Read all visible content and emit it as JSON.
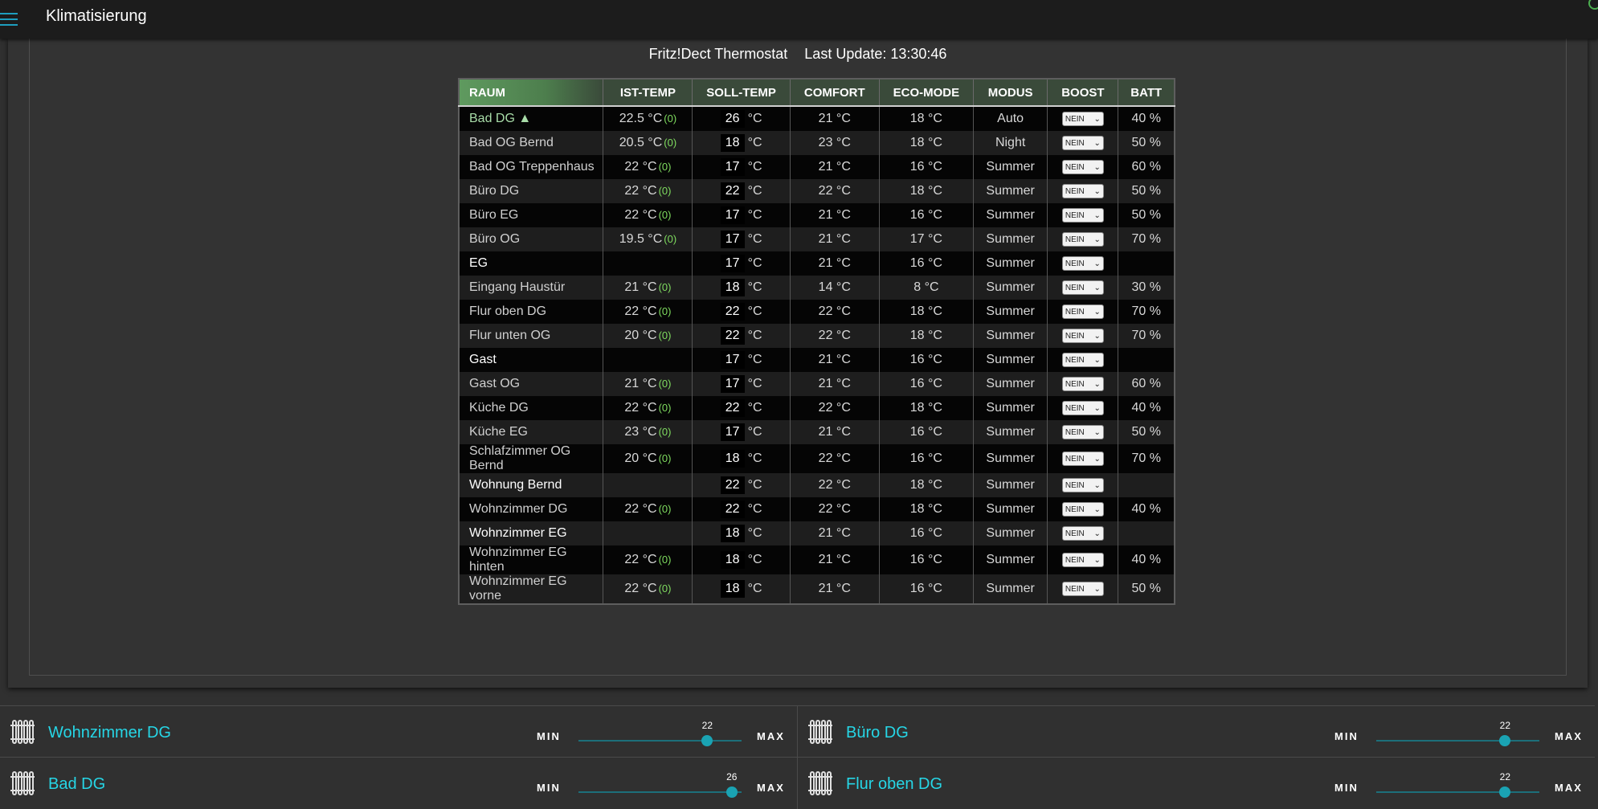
{
  "app": {
    "title": "Klimatisierung"
  },
  "panel": {
    "device": "Fritz!Dect Thermostat",
    "last_update": "Last Update: 13:30:46"
  },
  "table": {
    "columns": [
      "RAUM",
      "IST-TEMP",
      "SOLL-TEMP",
      "COMFORT",
      "ECO-MODE",
      "MODUS",
      "BOOST",
      "BATT"
    ],
    "rows": [
      {
        "raum": "Bad DG ▲",
        "ist": "22.5 °C",
        "ist_sub": "(0)",
        "soll": "26",
        "comfort": "21 °C",
        "eco": "18 °C",
        "modus": "Auto",
        "boost": "NEIN",
        "batt": "40 %"
      },
      {
        "raum": "Bad OG Bernd",
        "ist": "20.5 °C",
        "ist_sub": "(0)",
        "soll": "18",
        "comfort": "23 °C",
        "eco": "18 °C",
        "modus": "Night",
        "boost": "NEIN",
        "batt": "50 %"
      },
      {
        "raum": "Bad OG Treppenhaus",
        "ist": "22 °C",
        "ist_sub": "(0)",
        "soll": "17",
        "comfort": "21 °C",
        "eco": "16 °C",
        "modus": "Summer",
        "boost": "NEIN",
        "batt": "60 %"
      },
      {
        "raum": "Büro DG",
        "ist": "22 °C",
        "ist_sub": "(0)",
        "soll": "22",
        "comfort": "22 °C",
        "eco": "18 °C",
        "modus": "Summer",
        "boost": "NEIN",
        "batt": "50 %"
      },
      {
        "raum": "Büro EG",
        "ist": "22 °C",
        "ist_sub": "(0)",
        "soll": "17",
        "comfort": "21 °C",
        "eco": "16 °C",
        "modus": "Summer",
        "boost": "NEIN",
        "batt": "50 %"
      },
      {
        "raum": "Büro OG",
        "ist": "19.5 °C",
        "ist_sub": "(0)",
        "soll": "17",
        "comfort": "21 °C",
        "eco": "17 °C",
        "modus": "Summer",
        "boost": "NEIN",
        "batt": "70 %"
      },
      {
        "raum": "EG",
        "ist": "",
        "ist_sub": "",
        "soll": "17",
        "comfort": "21 °C",
        "eco": "16 °C",
        "modus": "Summer",
        "boost": "NEIN",
        "batt": ""
      },
      {
        "raum": "Eingang Haustür",
        "ist": "21 °C",
        "ist_sub": "(0)",
        "soll": "18",
        "comfort": "14 °C",
        "eco": "8 °C",
        "modus": "Summer",
        "boost": "NEIN",
        "batt": "30 %"
      },
      {
        "raum": "Flur oben DG",
        "ist": "22 °C",
        "ist_sub": "(0)",
        "soll": "22",
        "comfort": "22 °C",
        "eco": "18 °C",
        "modus": "Summer",
        "boost": "NEIN",
        "batt": "70 %"
      },
      {
        "raum": "Flur unten OG",
        "ist": "20 °C",
        "ist_sub": "(0)",
        "soll": "22",
        "comfort": "22 °C",
        "eco": "18 °C",
        "modus": "Summer",
        "boost": "NEIN",
        "batt": "70 %"
      },
      {
        "raum": "Gast",
        "ist": "",
        "ist_sub": "",
        "soll": "17",
        "comfort": "21 °C",
        "eco": "16 °C",
        "modus": "Summer",
        "boost": "NEIN",
        "batt": ""
      },
      {
        "raum": "Gast OG",
        "ist": "21 °C",
        "ist_sub": "(0)",
        "soll": "17",
        "comfort": "21 °C",
        "eco": "16 °C",
        "modus": "Summer",
        "boost": "NEIN",
        "batt": "60 %"
      },
      {
        "raum": "Küche DG",
        "ist": "22 °C",
        "ist_sub": "(0)",
        "soll": "22",
        "comfort": "22 °C",
        "eco": "18 °C",
        "modus": "Summer",
        "boost": "NEIN",
        "batt": "40 %"
      },
      {
        "raum": "Küche EG",
        "ist": "23 °C",
        "ist_sub": "(0)",
        "soll": "17",
        "comfort": "21 °C",
        "eco": "16 °C",
        "modus": "Summer",
        "boost": "NEIN",
        "batt": "50 %"
      },
      {
        "raum": "Schlafzimmer OG Bernd",
        "ist": "20 °C",
        "ist_sub": "(0)",
        "soll": "18",
        "comfort": "22 °C",
        "eco": "16 °C",
        "modus": "Summer",
        "boost": "NEIN",
        "batt": "70 %"
      },
      {
        "raum": "Wohnung Bernd",
        "ist": "",
        "ist_sub": "",
        "soll": "22",
        "comfort": "22 °C",
        "eco": "18 °C",
        "modus": "Summer",
        "boost": "NEIN",
        "batt": ""
      },
      {
        "raum": "Wohnzimmer DG",
        "ist": "22 °C",
        "ist_sub": "(0)",
        "soll": "22",
        "comfort": "22 °C",
        "eco": "18 °C",
        "modus": "Summer",
        "boost": "NEIN",
        "batt": "40 %"
      },
      {
        "raum": "Wohnzimmer EG",
        "ist": "",
        "ist_sub": "",
        "soll": "18",
        "comfort": "21 °C",
        "eco": "16 °C",
        "modus": "Summer",
        "boost": "NEIN",
        "batt": ""
      },
      {
        "raum": "Wohnzimmer EG hinten",
        "ist": "22 °C",
        "ist_sub": "(0)",
        "soll": "18",
        "comfort": "21 °C",
        "eco": "16 °C",
        "modus": "Summer",
        "boost": "NEIN",
        "batt": "40 %"
      },
      {
        "raum": "Wohnzimmer EG vorne",
        "ist": "22 °C",
        "ist_sub": "(0)",
        "soll": "18",
        "comfort": "21 °C",
        "eco": "16 °C",
        "modus": "Summer",
        "boost": "NEIN",
        "batt": "50 %"
      }
    ]
  },
  "soll_unit": "°C",
  "tiles": [
    {
      "name": "Wohnzimmer DG",
      "value": "22",
      "fraction": 0.79,
      "min_label": "MIN",
      "max_label": "MAX",
      "icon": "radiator-icon"
    },
    {
      "name": "Büro DG",
      "value": "22",
      "fraction": 0.79,
      "min_label": "MIN",
      "max_label": "MAX",
      "icon": "radiator-icon"
    },
    {
      "name": "Bad DG",
      "value": "26",
      "fraction": 0.94,
      "min_label": "MIN",
      "max_label": "MAX",
      "icon": "radiator-icon"
    },
    {
      "name": "Flur oben DG",
      "value": "22",
      "fraction": 0.79,
      "min_label": "MIN",
      "max_label": "MAX",
      "icon": "radiator-icon"
    }
  ],
  "colors": {
    "accent": "#26d6e6",
    "batt": "#8fdc8f",
    "header_green": "#5f9a5f"
  }
}
